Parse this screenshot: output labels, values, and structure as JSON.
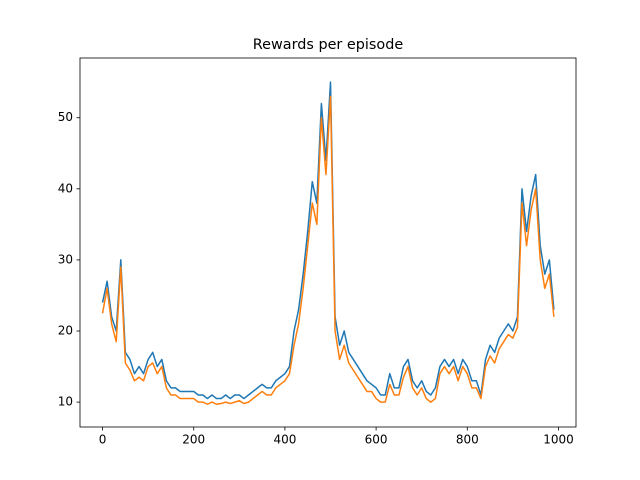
{
  "chart_data": {
    "type": "line",
    "title": "Rewards per episode",
    "x": [
      0,
      10,
      20,
      30,
      40,
      50,
      60,
      70,
      80,
      90,
      100,
      110,
      120,
      130,
      140,
      150,
      160,
      170,
      180,
      190,
      200,
      210,
      220,
      230,
      240,
      250,
      260,
      270,
      280,
      290,
      300,
      310,
      320,
      330,
      340,
      350,
      360,
      370,
      380,
      390,
      400,
      410,
      420,
      430,
      440,
      450,
      460,
      470,
      480,
      490,
      500,
      510,
      520,
      530,
      540,
      550,
      560,
      570,
      580,
      590,
      600,
      610,
      620,
      630,
      640,
      650,
      660,
      670,
      680,
      690,
      700,
      710,
      720,
      730,
      740,
      750,
      760,
      770,
      780,
      790,
      800,
      810,
      820,
      830,
      840,
      850,
      860,
      870,
      880,
      890,
      900,
      910,
      920,
      930,
      940,
      950,
      960,
      970,
      980,
      990
    ],
    "series": [
      {
        "name": "blue",
        "color": "#1f77b4",
        "values": [
          24,
          27,
          22,
          20,
          30,
          17,
          16,
          14,
          15,
          14,
          16,
          17,
          15,
          16,
          13,
          12,
          12,
          11.5,
          11.5,
          11.5,
          11.5,
          11,
          11,
          10.5,
          11,
          10.5,
          10.5,
          11,
          10.5,
          11,
          11,
          10.5,
          11,
          11.5,
          12,
          12.5,
          12,
          12,
          13,
          13.5,
          14,
          15,
          20,
          23,
          28,
          34,
          41,
          38,
          52,
          44,
          55,
          22,
          18,
          20,
          17,
          16,
          15,
          14,
          13,
          12.5,
          12,
          11,
          11,
          14,
          12,
          12,
          15,
          16,
          13,
          12,
          13,
          11.5,
          11,
          12,
          15,
          16,
          15,
          16,
          14,
          16,
          15,
          13,
          13,
          11,
          16,
          18,
          17,
          19,
          20,
          21,
          20,
          22,
          40,
          34,
          39,
          42,
          32,
          28,
          30,
          23
        ]
      },
      {
        "name": "orange",
        "color": "#ff7f0e",
        "values": [
          22.5,
          26,
          21,
          18.5,
          29,
          15.5,
          14.5,
          13,
          13.5,
          13,
          15,
          15.5,
          14,
          15,
          12,
          11,
          11,
          10.5,
          10.5,
          10.5,
          10.5,
          10,
          10,
          9.7,
          10,
          9.7,
          9.8,
          10,
          9.8,
          10,
          10.2,
          9.8,
          10,
          10.5,
          11,
          11.5,
          11,
          11,
          12,
          12.5,
          13,
          14,
          18,
          21,
          26,
          32,
          38,
          35,
          50,
          42,
          53,
          20,
          16,
          18,
          15.5,
          14.5,
          13.5,
          12.5,
          11.5,
          11.5,
          10.5,
          10,
          10,
          12.5,
          11,
          11,
          13.5,
          15,
          12,
          11,
          12,
          10.5,
          10,
          10.5,
          14,
          15,
          14,
          15,
          13,
          15,
          14,
          12,
          12,
          10.5,
          15,
          16.5,
          15.5,
          17.5,
          18.5,
          19.5,
          19,
          20.5,
          38,
          32,
          37,
          40,
          30,
          26,
          28,
          22
        ]
      }
    ],
    "xlim": [
      -49.45,
      1038.45
    ],
    "ylim": [
      6.5,
      58.4
    ],
    "xticks": [
      0,
      200,
      400,
      600,
      800,
      1000
    ],
    "yticks": [
      10,
      20,
      30,
      40,
      50
    ],
    "grid": false
  }
}
